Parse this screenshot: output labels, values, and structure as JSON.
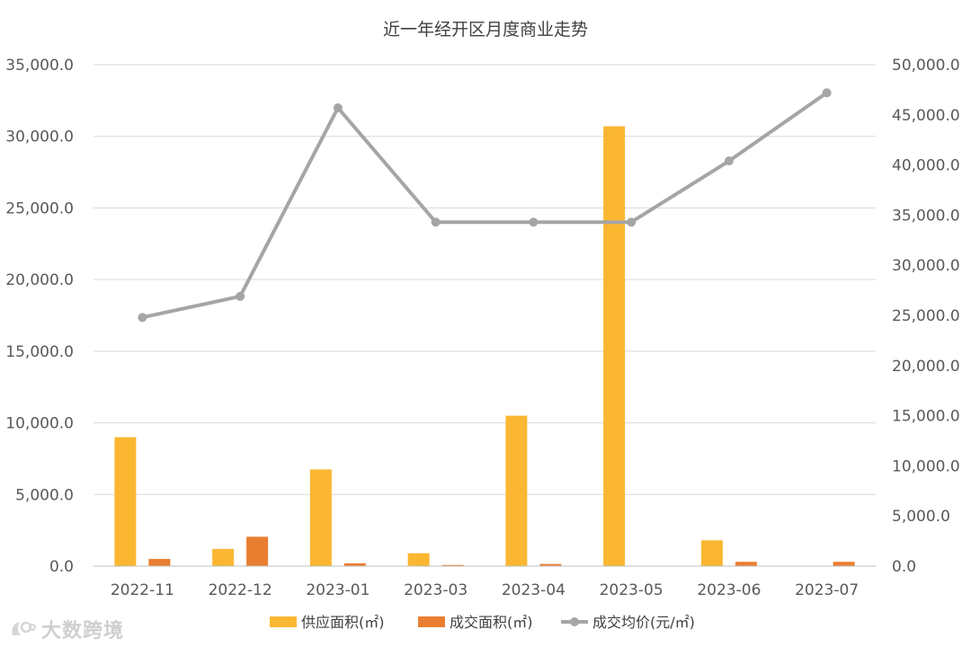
{
  "watermark": {
    "text": "大数跨境"
  },
  "chart_data": {
    "type": "bar",
    "title": "近一年经开区月度商业走势",
    "categories": [
      "2022-11",
      "2022-12",
      "2023-01",
      "2023-03",
      "2023-04",
      "2023-05",
      "2023-06",
      "2023-07"
    ],
    "y_left": {
      "range": [
        0,
        35000
      ],
      "ticks": [
        0,
        5000,
        10000,
        15000,
        20000,
        25000,
        30000,
        35000
      ],
      "tick_labels": [
        "0.0",
        "5,000.0",
        "10,000.0",
        "15,000.0",
        "20,000.0",
        "25,000.0",
        "30,000.0",
        "35,000.0"
      ]
    },
    "y_right": {
      "range": [
        0,
        50000
      ],
      "ticks": [
        0,
        5000,
        10000,
        15000,
        20000,
        25000,
        30000,
        35000,
        40000,
        45000,
        50000
      ],
      "tick_labels": [
        "0.0",
        "5,000.0",
        "10,000.0",
        "15,000.0",
        "20,000.0",
        "25,000.0",
        "30,000.0",
        "35,000.0",
        "40,000.0",
        "45,000.0",
        "50,000.0"
      ]
    },
    "grid": true,
    "legend_position": "bottom",
    "series": [
      {
        "name": "供应面积(㎡)",
        "type": "bar",
        "axis": "left",
        "color": "#FBB732",
        "values": [
          9000,
          1200,
          6750,
          900,
          10500,
          30700,
          1800,
          0
        ]
      },
      {
        "name": "成交面积(㎡)",
        "type": "bar",
        "axis": "left",
        "color": "#EA7E30",
        "values": [
          500,
          2050,
          200,
          80,
          150,
          0,
          300,
          300
        ]
      },
      {
        "name": "成交均价(元/㎡)",
        "type": "line",
        "axis": "right",
        "color": "#A5A5A5",
        "values": [
          24800,
          26900,
          45700,
          34300,
          34300,
          34300,
          40400,
          47200
        ]
      }
    ]
  }
}
